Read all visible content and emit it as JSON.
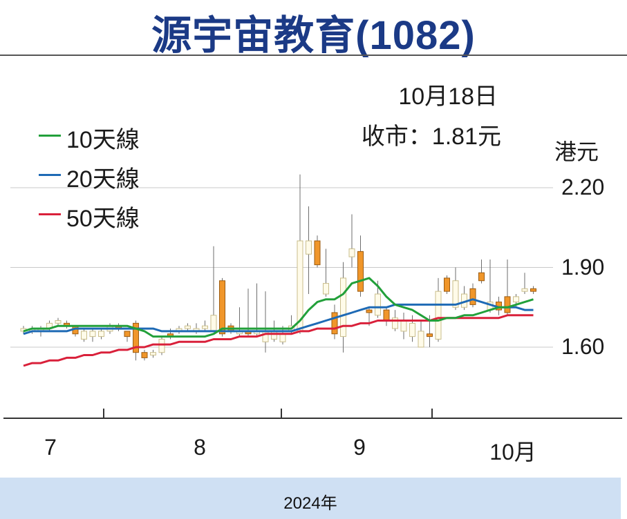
{
  "title": "源宇宙教育(1082)",
  "note": {
    "date": "10月18日",
    "close": "收市：1.81元"
  },
  "footer": "2024年",
  "colors": {
    "title": "#1b3a86",
    "ma10": "#22a03a",
    "ma20": "#1e6ab5",
    "ma50": "#d9203a",
    "down_candle": "#f0962a",
    "up_candle": "#fffbe9",
    "footer_bg": "#cfe0f3"
  },
  "chart_data": {
    "type": "candlestick",
    "yunit": "港元",
    "yticks": [
      "2.20",
      "1.90",
      "1.60"
    ],
    "ylim": [
      1.4,
      2.25
    ],
    "xticks": [
      "7",
      "8",
      "9",
      "10月"
    ],
    "grid": true,
    "legend": [
      {
        "name": "10天線",
        "color": "#22a03a"
      },
      {
        "name": "20天線",
        "color": "#1e6ab5"
      },
      {
        "name": "50天線",
        "color": "#d9203a"
      }
    ],
    "candles": [
      [
        1.66,
        1.67,
        1.68,
        1.65
      ],
      [
        1.66,
        1.67,
        1.68,
        1.65
      ],
      [
        1.66,
        1.67,
        1.68,
        1.64
      ],
      [
        1.67,
        1.69,
        1.7,
        1.66
      ],
      [
        1.69,
        1.7,
        1.71,
        1.68
      ],
      [
        1.69,
        1.68,
        1.7,
        1.67
      ],
      [
        1.68,
        1.65,
        1.68,
        1.64
      ],
      [
        1.63,
        1.66,
        1.67,
        1.62
      ],
      [
        1.64,
        1.66,
        1.67,
        1.62
      ],
      [
        1.64,
        1.66,
        1.67,
        1.63
      ],
      [
        1.66,
        1.68,
        1.69,
        1.65
      ],
      [
        1.68,
        1.67,
        1.69,
        1.66
      ],
      [
        1.66,
        1.64,
        1.66,
        1.62
      ],
      [
        1.69,
        1.58,
        1.7,
        1.55
      ],
      [
        1.58,
        1.56,
        1.59,
        1.55
      ],
      [
        1.57,
        1.58,
        1.59,
        1.56
      ],
      [
        1.58,
        1.63,
        1.64,
        1.57
      ],
      [
        1.65,
        1.64,
        1.67,
        1.63
      ],
      [
        1.66,
        1.67,
        1.68,
        1.65
      ],
      [
        1.67,
        1.68,
        1.69,
        1.66
      ],
      [
        1.66,
        1.67,
        1.69,
        1.65
      ],
      [
        1.67,
        1.68,
        1.7,
        1.66
      ],
      [
        1.66,
        1.72,
        1.98,
        1.66
      ],
      [
        1.85,
        1.65,
        1.86,
        1.64
      ],
      [
        1.68,
        1.66,
        1.69,
        1.65
      ],
      [
        1.65,
        1.66,
        1.75,
        1.64
      ],
      [
        1.66,
        1.65,
        1.82,
        1.64
      ],
      [
        1.65,
        1.66,
        1.84,
        1.64
      ],
      [
        1.62,
        1.66,
        1.81,
        1.58
      ],
      [
        1.63,
        1.66,
        1.7,
        1.62
      ],
      [
        1.62,
        1.65,
        1.68,
        1.61
      ],
      [
        1.66,
        1.68,
        1.72,
        1.65
      ],
      [
        1.66,
        2.0,
        2.25,
        1.65
      ],
      [
        1.95,
        2.0,
        2.13,
        1.8
      ],
      [
        2.0,
        1.91,
        2.02,
        1.9
      ],
      [
        1.8,
        1.84,
        1.97,
        1.79
      ],
      [
        1.73,
        1.65,
        1.76,
        1.63
      ],
      [
        1.64,
        1.86,
        1.92,
        1.58
      ],
      [
        1.94,
        1.97,
        2.1,
        1.9
      ],
      [
        1.96,
        1.81,
        2.02,
        1.79
      ],
      [
        1.74,
        1.73,
        1.75,
        1.68
      ],
      [
        1.72,
        1.8,
        1.85,
        1.71
      ],
      [
        1.74,
        1.7,
        1.75,
        1.68
      ],
      [
        1.67,
        1.71,
        1.74,
        1.66
      ],
      [
        1.66,
        1.7,
        1.73,
        1.63
      ],
      [
        1.64,
        1.69,
        1.72,
        1.62
      ],
      [
        1.6,
        1.66,
        1.7,
        1.6
      ],
      [
        1.65,
        1.64,
        1.72,
        1.6
      ],
      [
        1.63,
        1.81,
        1.86,
        1.62
      ],
      [
        1.86,
        1.81,
        1.87,
        1.8
      ],
      [
        1.75,
        1.85,
        1.9,
        1.74
      ],
      [
        1.75,
        1.8,
        1.83,
        1.74
      ],
      [
        1.82,
        1.76,
        1.84,
        1.75
      ],
      [
        1.88,
        1.85,
        1.93,
        1.84
      ],
      [
        1.74,
        1.77,
        1.93,
        1.73
      ],
      [
        1.77,
        1.74,
        1.79,
        1.72
      ],
      [
        1.79,
        1.73,
        1.93,
        1.72
      ],
      [
        1.77,
        1.79,
        1.8,
        1.75
      ],
      [
        1.81,
        1.82,
        1.88,
        1.8
      ],
      [
        1.82,
        1.81,
        1.83,
        1.8
      ]
    ],
    "ma10": [
      1.66,
      1.67,
      1.67,
      1.67,
      1.68,
      1.68,
      1.68,
      1.68,
      1.68,
      1.68,
      1.68,
      1.68,
      1.68,
      1.67,
      1.66,
      1.64,
      1.64,
      1.64,
      1.64,
      1.64,
      1.64,
      1.64,
      1.65,
      1.67,
      1.67,
      1.67,
      1.67,
      1.67,
      1.67,
      1.67,
      1.67,
      1.67,
      1.7,
      1.74,
      1.77,
      1.78,
      1.78,
      1.8,
      1.84,
      1.85,
      1.86,
      1.83,
      1.79,
      1.76,
      1.75,
      1.74,
      1.72,
      1.7,
      1.7,
      1.71,
      1.71,
      1.72,
      1.72,
      1.73,
      1.74,
      1.75,
      1.75,
      1.76,
      1.77,
      1.78
    ],
    "ma20": [
      1.65,
      1.66,
      1.66,
      1.66,
      1.66,
      1.66,
      1.67,
      1.67,
      1.67,
      1.67,
      1.67,
      1.67,
      1.67,
      1.67,
      1.67,
      1.67,
      1.66,
      1.66,
      1.66,
      1.66,
      1.66,
      1.66,
      1.66,
      1.66,
      1.66,
      1.66,
      1.66,
      1.66,
      1.66,
      1.66,
      1.66,
      1.66,
      1.67,
      1.68,
      1.69,
      1.7,
      1.71,
      1.72,
      1.73,
      1.74,
      1.75,
      1.75,
      1.75,
      1.76,
      1.76,
      1.76,
      1.76,
      1.76,
      1.76,
      1.76,
      1.76,
      1.77,
      1.78,
      1.77,
      1.76,
      1.75,
      1.75,
      1.75,
      1.74,
      1.74
    ],
    "ma50": [
      1.53,
      1.54,
      1.54,
      1.55,
      1.55,
      1.56,
      1.56,
      1.57,
      1.57,
      1.58,
      1.58,
      1.59,
      1.59,
      1.6,
      1.6,
      1.61,
      1.61,
      1.61,
      1.62,
      1.62,
      1.62,
      1.62,
      1.63,
      1.63,
      1.63,
      1.64,
      1.64,
      1.64,
      1.65,
      1.65,
      1.65,
      1.65,
      1.66,
      1.66,
      1.67,
      1.67,
      1.67,
      1.68,
      1.68,
      1.69,
      1.69,
      1.7,
      1.7,
      1.7,
      1.7,
      1.7,
      1.7,
      1.7,
      1.71,
      1.71,
      1.71,
      1.71,
      1.71,
      1.71,
      1.71,
      1.71,
      1.72,
      1.72,
      1.72,
      1.72
    ]
  }
}
